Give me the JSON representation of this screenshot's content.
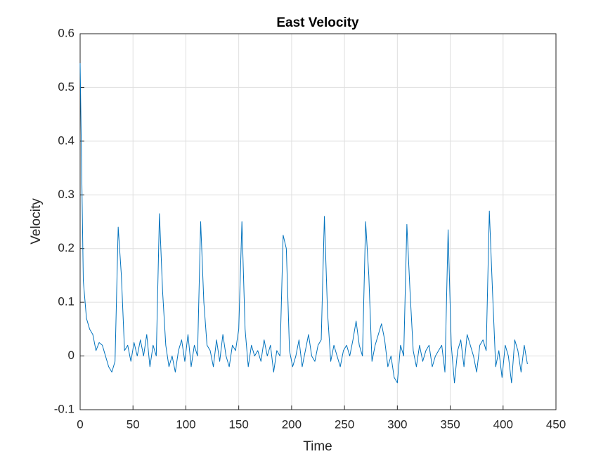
{
  "chart_data": {
    "type": "line",
    "title": "East Velocity",
    "x_label": "Time",
    "y_label": "Velocity",
    "xlim": [
      0,
      450
    ],
    "xticks": [
      0,
      50,
      100,
      150,
      200,
      250,
      300,
      350,
      400,
      450
    ],
    "ylim": [
      -0.1,
      0.6
    ],
    "yticks": [
      -0.1,
      0,
      0.1,
      0.2,
      0.3,
      0.4,
      0.5,
      0.6
    ],
    "grid": true,
    "x": [
      0,
      3,
      6,
      9,
      12,
      15,
      18,
      21,
      24,
      27,
      30,
      33,
      36,
      39,
      42,
      45,
      48,
      51,
      54,
      57,
      60,
      63,
      66,
      69,
      72,
      75,
      78,
      81,
      84,
      87,
      90,
      93,
      96,
      99,
      102,
      105,
      108,
      111,
      114,
      117,
      120,
      123,
      126,
      129,
      132,
      135,
      138,
      141,
      144,
      147,
      150,
      153,
      156,
      159,
      162,
      165,
      168,
      171,
      174,
      177,
      180,
      183,
      186,
      189,
      192,
      195,
      198,
      201,
      204,
      207,
      210,
      213,
      216,
      219,
      222,
      225,
      228,
      231,
      234,
      237,
      240,
      243,
      246,
      249,
      252,
      255,
      258,
      261,
      264,
      267,
      270,
      273,
      276,
      279,
      282,
      285,
      288,
      291,
      294,
      297,
      300,
      303,
      306,
      309,
      312,
      315,
      318,
      321,
      324,
      327,
      330,
      333,
      336,
      339,
      342,
      345,
      348,
      351,
      354,
      357,
      360,
      363,
      366,
      369,
      372,
      375,
      378,
      381,
      384,
      387,
      390,
      393,
      396,
      399,
      402,
      405,
      408,
      411,
      414,
      417,
      420,
      423
    ],
    "series": [
      {
        "name": "East Velocity",
        "color": "#0072bd",
        "values": [
          0.545,
          0.14,
          0.07,
          0.05,
          0.04,
          0.01,
          0.025,
          0.02,
          0.0,
          -0.02,
          -0.03,
          -0.01,
          0.24,
          0.15,
          0.01,
          0.02,
          -0.01,
          0.025,
          0.0,
          0.03,
          0.0,
          0.04,
          -0.02,
          0.02,
          0.0,
          0.265,
          0.12,
          0.02,
          -0.02,
          0.0,
          -0.03,
          0.01,
          0.03,
          -0.01,
          0.04,
          -0.02,
          0.02,
          0.0,
          0.25,
          0.1,
          0.02,
          0.01,
          -0.02,
          0.03,
          -0.01,
          0.04,
          0.0,
          -0.02,
          0.02,
          0.01,
          0.05,
          0.25,
          0.05,
          -0.02,
          0.02,
          0.0,
          0.01,
          -0.01,
          0.03,
          0.0,
          0.02,
          -0.03,
          0.01,
          0.0,
          0.225,
          0.2,
          0.01,
          -0.02,
          0.0,
          0.03,
          -0.02,
          0.01,
          0.04,
          0.0,
          -0.01,
          0.02,
          0.03,
          0.26,
          0.08,
          -0.01,
          0.02,
          0.0,
          -0.02,
          0.01,
          0.02,
          0.0,
          0.03,
          0.065,
          0.02,
          0.0,
          0.25,
          0.15,
          -0.01,
          0.02,
          0.04,
          0.06,
          0.03,
          -0.02,
          0.0,
          -0.04,
          -0.05,
          0.02,
          0.0,
          0.245,
          0.12,
          0.01,
          -0.02,
          0.02,
          -0.01,
          0.01,
          0.02,
          -0.02,
          0.0,
          0.01,
          0.02,
          -0.03,
          0.235,
          0.02,
          -0.05,
          0.01,
          0.03,
          -0.02,
          0.04,
          0.02,
          0.0,
          -0.03,
          0.02,
          0.03,
          0.01,
          0.27,
          0.12,
          -0.02,
          0.01,
          -0.04,
          0.02,
          0.0,
          -0.05,
          0.03,
          0.01,
          -0.03,
          0.02,
          -0.015
        ]
      }
    ]
  }
}
